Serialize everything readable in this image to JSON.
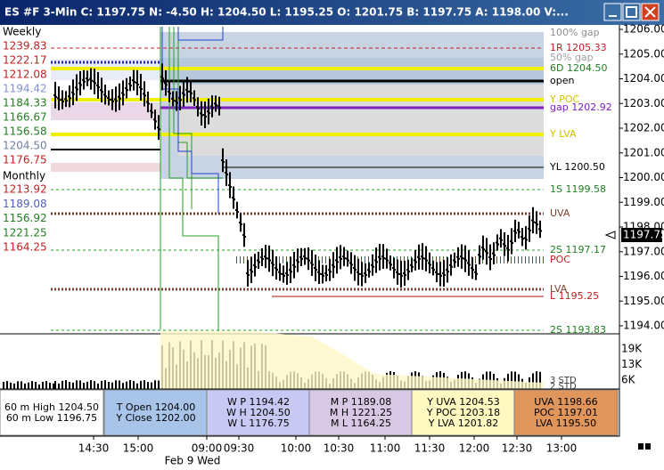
{
  "window": {
    "title": "ES #F  3-Min C:  1197.75 N:    -4.50 H:  1204.50 L:  1195.25 O:  1201.75 B:  1197.75 A:  1198.00 V:..."
  },
  "left_panel": {
    "weekly_title": "Weekly",
    "weekly": [
      "1239.83",
      "1222.17",
      "1212.08",
      "1194.42",
      "1184.33",
      "1166.67",
      "1156.58",
      "1204.50",
      "1176.75"
    ],
    "monthly_title": "Monthly",
    "monthly": [
      "1213.92",
      "1189.08",
      "1156.92",
      "1221.25",
      "1164.25"
    ]
  },
  "level_labels": [
    "100% gap",
    "1R 1205.33",
    "50% gap",
    "6D 1204.50",
    "open",
    "Y POC",
    "gap 1202.92",
    "Y LVA",
    "YL 1200.50",
    "1S 1199.58",
    "UVA",
    "2S 1197.17",
    "POC",
    "LVA",
    "L 1195.25",
    "2S 1193.83"
  ],
  "price_axis": {
    "ticks": [
      "1206.00",
      "1205.00",
      "1204.00",
      "1203.00",
      "1202.00",
      "1201.00",
      "1200.00",
      "1199.00",
      "1198.00",
      "1197.00",
      "1196.00",
      "1195.00",
      "1194.00"
    ],
    "current": "1197.75"
  },
  "volume_axis": {
    "ticks": [
      "19K",
      "13K",
      "6K"
    ],
    "std_labels": [
      "3 STD",
      "2 STD"
    ]
  },
  "info_boxes": [
    [
      "60 m High 1204.50",
      "60 m Low 1196.75"
    ],
    [
      "T Open 1204.00",
      "Y Close 1202.00"
    ],
    [
      "W P 1194.42",
      "W H 1204.50",
      "W L 1176.75"
    ],
    [
      "M P 1189.08",
      "M H 1221.25",
      "M L 1164.25"
    ],
    [
      "Y UVA 1204.53",
      "Y POC 1203.18",
      "Y LVA 1201.82"
    ],
    [
      "UVA 1198.66",
      "POC 1197.01",
      "LVA 1195.50"
    ]
  ],
  "time_axis": {
    "ticks": [
      "14:30",
      "15:00",
      "09:00",
      "09:30",
      "10:00",
      "10:30",
      "11:00",
      "11:30",
      "12:00",
      "12:30",
      "13:00"
    ],
    "date": "Feb 9 Wed"
  }
}
